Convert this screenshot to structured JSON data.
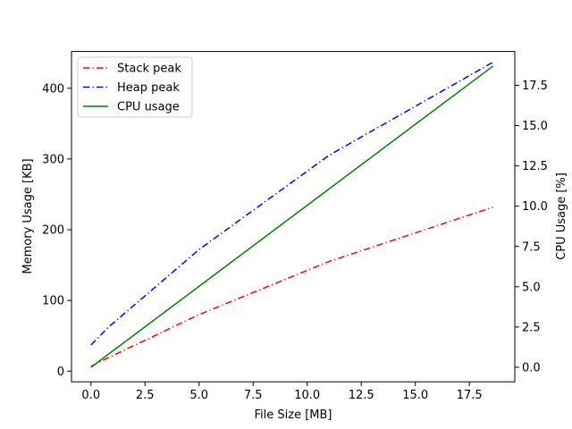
{
  "chart_data": {
    "type": "line",
    "title": "",
    "xlabel": "File Size [MB]",
    "ylabel_left": "Memory Usage [KB]",
    "ylabel_right": "CPU Usage [%]",
    "xlim": [
      -0.9,
      19.6
    ],
    "ylim_left": [
      -15,
      452
    ],
    "ylim_right": [
      -0.9,
      19.6
    ],
    "x_ticks": [
      0.0,
      2.5,
      5.0,
      7.5,
      10.0,
      12.5,
      15.0,
      17.5
    ],
    "x_tick_labels": [
      "0.0",
      "2.5",
      "5.0",
      "7.5",
      "10.0",
      "12.5",
      "15.0",
      "17.5"
    ],
    "y_left_ticks": [
      0,
      100,
      200,
      300,
      400
    ],
    "y_left_tick_labels": [
      "0",
      "100",
      "200",
      "300",
      "400"
    ],
    "y_right_ticks": [
      0.0,
      2.5,
      5.0,
      7.5,
      10.0,
      12.5,
      15.0,
      17.5
    ],
    "y_right_tick_labels": [
      "0.0",
      "2.5",
      "5.0",
      "7.5",
      "10.0",
      "12.5",
      "15.0",
      "17.5"
    ],
    "grid": false,
    "legend_position": "top-left",
    "series": [
      {
        "name": "Stack peak",
        "axis": "left",
        "color": "#ff0000",
        "style": "dashdot",
        "x": [
          0,
          0.8,
          5,
          11,
          18.6
        ],
        "y": [
          7,
          19,
          80,
          155,
          232
        ]
      },
      {
        "name": "Heap peak",
        "axis": "left",
        "color": "#0000ff",
        "style": "dashdot",
        "x": [
          0,
          0.8,
          5,
          11,
          18.6
        ],
        "y": [
          37,
          62,
          172,
          305,
          437
        ]
      },
      {
        "name": "CPU usage",
        "axis": "right",
        "color": "#008000",
        "style": "solid",
        "x": [
          0,
          18.6
        ],
        "y": [
          0,
          18.7
        ]
      }
    ]
  }
}
